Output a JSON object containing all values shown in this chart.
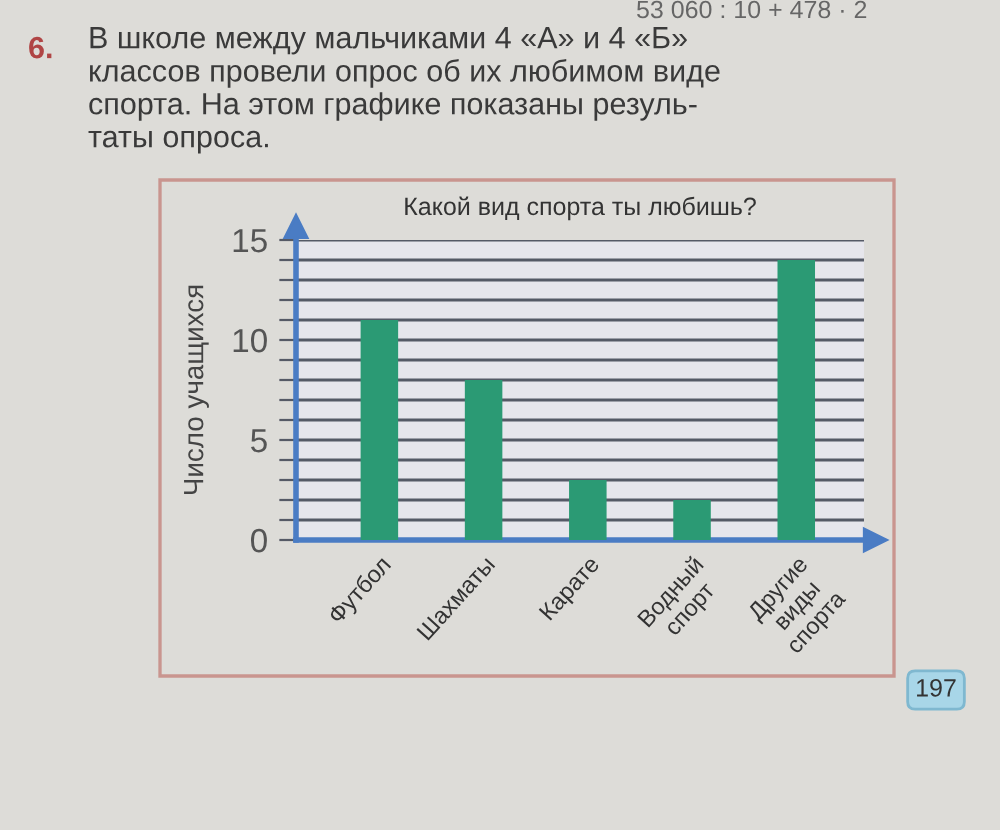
{
  "chart_data": {
    "type": "bar",
    "title": "Какой вид спорта ты любишь?",
    "ylabel": "Число учащихся",
    "categories": [
      "Футбол",
      "Шахматы",
      "Карате",
      "Водный\nспорт",
      "Другие\nвиды\nспорта"
    ],
    "values": [
      11,
      8,
      3,
      2,
      14
    ],
    "color": "#2b9a74",
    "ylim": [
      0,
      15
    ],
    "yticks": [
      0,
      {
        "value": 1,
        "label": null
      },
      {
        "value": 2,
        "label": null
      },
      {
        "value": 3,
        "label": null
      },
      {
        "value": 4,
        "label": null
      },
      5,
      {
        "value": 6,
        "label": null
      },
      {
        "value": 7,
        "label": null
      },
      {
        "value": 8,
        "label": null
      },
      {
        "value": 9,
        "label": null
      },
      10,
      {
        "value": 11,
        "label": null
      },
      {
        "value": 12,
        "label": null
      },
      {
        "value": 13,
        "label": null
      },
      {
        "value": 14,
        "label": null
      },
      15
    ],
    "grid": "y",
    "annotations": [
      "53 060 : 10 + 478 · 2",
      "6.",
      "В школе между мальчиками 4 «А» и 4 «Б»\nклассов провели опрос об их любимом виде\nспорта. На этом графике показаны резуль-\nтаты опроса.",
      "197"
    ]
  }
}
